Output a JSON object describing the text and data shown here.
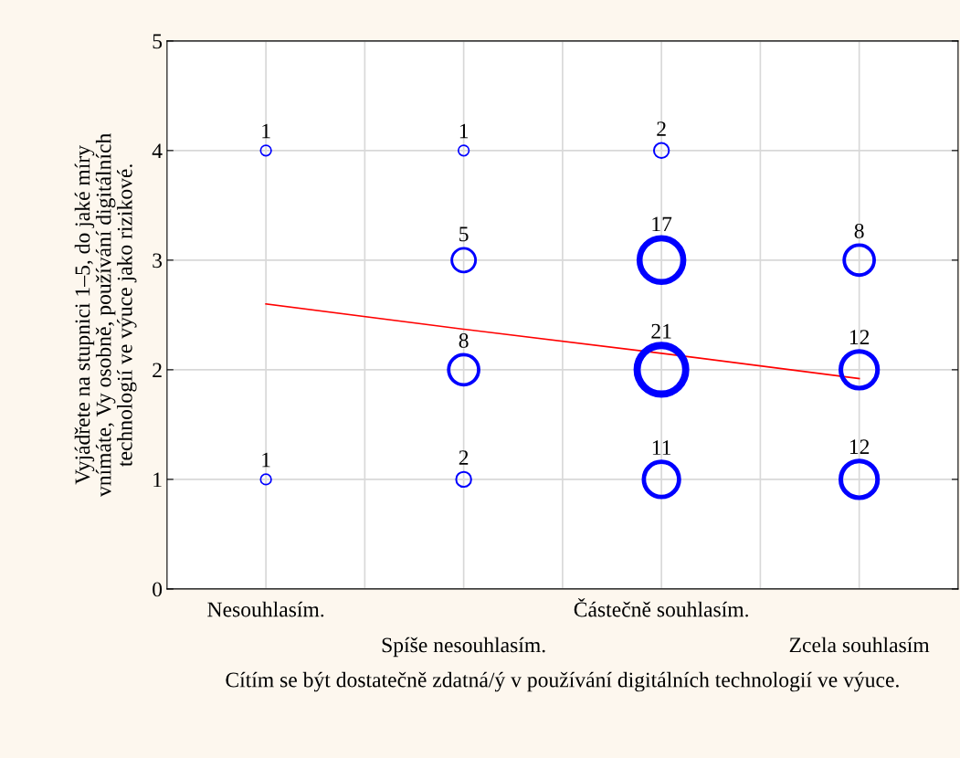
{
  "chart_data": {
    "type": "bubble",
    "xlabel": "Cítím se být dostatečně zdatná/ý v používání digitálních technologií ve výuce.",
    "ylabel": "Vyjádřete na stupnici 1–5, do jaké míry\nvnímáte, Vy osobně, používání digitálních\ntechnologií ve výuce jako rizikové.",
    "categories": [
      "Nesouhlasím.",
      "Spíše nesouhlasím.",
      "Částečně souhlasím.",
      "Zcela souhlasím"
    ],
    "ylim": [
      0,
      5
    ],
    "yticks": [
      0,
      1,
      2,
      3,
      4,
      5
    ],
    "grid": true,
    "marker": "circle",
    "series": [
      {
        "color": "#0000ff",
        "values": [
          4,
          4,
          4,
          null
        ],
        "sizes": [
          1,
          1,
          2,
          null
        ],
        "value_labels": [
          "1",
          "1",
          "2",
          null
        ]
      },
      {
        "color": "#0000ff",
        "values": [
          null,
          3,
          3,
          3
        ],
        "sizes": [
          null,
          5,
          17,
          8
        ],
        "value_labels": [
          null,
          "5",
          "17",
          "8"
        ]
      },
      {
        "color": "#0000ff",
        "values": [
          null,
          2,
          2,
          2
        ],
        "sizes": [
          null,
          8,
          21,
          12
        ],
        "value_labels": [
          null,
          "8",
          "21",
          "12"
        ]
      },
      {
        "color": "#0000ff",
        "values": [
          1,
          1,
          1,
          1
        ],
        "sizes": [
          1,
          2,
          11,
          12
        ],
        "value_labels": [
          "1",
          "2",
          "11",
          "12"
        ]
      },
      {
        "type": "line",
        "marker": "none",
        "color": "#ff0000",
        "values": [
          2.6,
          2.37,
          2.15,
          1.92
        ]
      }
    ]
  }
}
